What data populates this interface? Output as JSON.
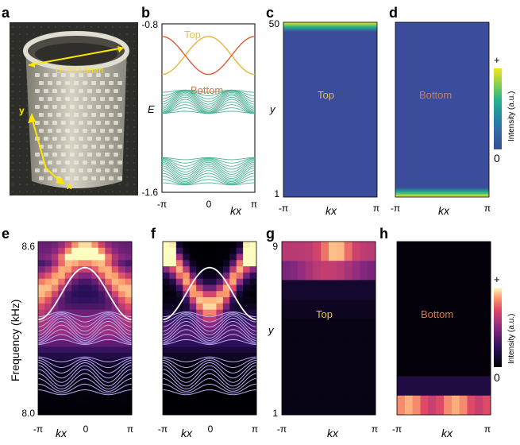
{
  "panels": {
    "a": {
      "letter": "a",
      "diameter_label": "D=263.5mm",
      "axis_y": "y",
      "axis_x": "x"
    },
    "b": {
      "letter": "b"
    },
    "c": {
      "letter": "c"
    },
    "d": {
      "letter": "d"
    },
    "e": {
      "letter": "e"
    },
    "f": {
      "letter": "f"
    },
    "g": {
      "letter": "g"
    },
    "h": {
      "letter": "h"
    }
  },
  "colors": {
    "top_label": "#e8c13a",
    "bottom_label": "#e0773a",
    "bulk_band": "#4db396",
    "edge_top": "#e8b53a",
    "edge_bottom": "#e05a3a",
    "viridis_low": "#3b4c9a",
    "theory_line": "#ffffff",
    "bulk_theory": "#b9aaf0"
  },
  "chart_data": [
    {
      "panel": "b",
      "type": "line",
      "ylabel": "E",
      "xlabel": "kx",
      "ylim": [
        -1.6,
        -0.8
      ],
      "y_ticks": [
        "-0.8",
        "-1.6"
      ],
      "x_ticks": [
        "-π",
        "0",
        "π"
      ],
      "series": [
        {
          "name": "Top",
          "color": "#e8b53a",
          "x": [
            -3.1416,
            -2.3562,
            -1.5708,
            -0.7854,
            0,
            0.7854,
            1.5708,
            2.3562,
            3.1416
          ],
          "y": [
            -1.0,
            -1.02,
            -0.96,
            -0.88,
            -0.86,
            -0.88,
            -0.96,
            -1.02,
            -1.0
          ]
        },
        {
          "name": "Bottom",
          "color": "#e05a3a",
          "x": [
            -3.1416,
            -2.3562,
            -1.5708,
            -0.7854,
            0,
            0.7854,
            1.5708,
            2.3562,
            3.1416
          ],
          "y": [
            -0.9,
            -0.88,
            -0.94,
            -1.02,
            -1.04,
            -1.02,
            -0.94,
            -0.88,
            -0.9
          ]
        }
      ],
      "labels": {
        "top": "Top",
        "bottom": "Bottom"
      }
    },
    {
      "panel": "c",
      "type": "heatmap",
      "xlabel": "kx",
      "ylabel": "y",
      "y_ticks": [
        "50",
        "1"
      ],
      "x_ticks": [
        "-π",
        "π"
      ],
      "label": "Top",
      "highlight_rows": "top"
    },
    {
      "panel": "d",
      "type": "heatmap",
      "xlabel": "kx",
      "x_ticks": [
        "-π",
        "π"
      ],
      "label": "Bottom",
      "highlight_rows": "bottom",
      "colorbar": {
        "label": "Intensity (a.u.)",
        "max": "+",
        "min": "0"
      }
    },
    {
      "panel": "e",
      "type": "heatmap",
      "ylabel": "Frequency (kHz)",
      "xlabel": "kx",
      "ylim": [
        8.0,
        8.6
      ],
      "y_ticks": [
        "8.6",
        "8.0"
      ],
      "x_ticks": [
        "-π",
        "0",
        "π"
      ]
    },
    {
      "panel": "f",
      "type": "heatmap",
      "xlabel": "kx",
      "x_ticks": [
        "-π",
        "0",
        "π"
      ]
    },
    {
      "panel": "g",
      "type": "heatmap",
      "xlabel": "kx",
      "ylabel": "y",
      "y_ticks": [
        "9",
        "1"
      ],
      "x_ticks": [
        "-π",
        "π"
      ],
      "label": "Top"
    },
    {
      "panel": "h",
      "type": "heatmap",
      "xlabel": "kx",
      "x_ticks": [
        "-π",
        "π"
      ],
      "label": "Bottom",
      "colorbar": {
        "label": "Intensity (a.u.)",
        "max": "+",
        "min": "0"
      }
    }
  ]
}
